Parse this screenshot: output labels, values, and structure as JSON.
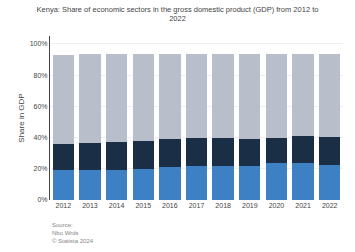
{
  "chart_data": {
    "type": "bar",
    "stacked": true,
    "title": "Kenya: Share of economic sectors in the gross domestic product (GDP) from 2012 to\n2022",
    "ylabel": "Share in GDP",
    "categories": [
      "2012",
      "2013",
      "2014",
      "2015",
      "2016",
      "2017",
      "2018",
      "2019",
      "2020",
      "2021",
      "2022"
    ],
    "series": [
      {
        "color": "#3d80c4",
        "values": [
          19.5,
          19.5,
          19.5,
          20.0,
          21.0,
          22.0,
          22.0,
          22.0,
          23.5,
          23.5,
          22.5
        ]
      },
      {
        "color": "#1a2e45",
        "values": [
          16.5,
          17.0,
          17.5,
          18.0,
          18.0,
          17.5,
          17.5,
          17.0,
          16.5,
          17.5,
          18.0
        ]
      },
      {
        "color": "#b8bfca",
        "values": [
          57.0,
          57.0,
          56.5,
          55.5,
          54.5,
          54.0,
          54.0,
          54.5,
          53.5,
          52.5,
          53.0
        ]
      }
    ],
    "ylim": [
      0,
      105
    ],
    "yticks": [
      {
        "value": 0,
        "label": "0%"
      },
      {
        "value": 20,
        "label": "20%"
      },
      {
        "value": 40,
        "label": "40%"
      },
      {
        "value": 60,
        "label": "60%"
      },
      {
        "value": 80,
        "label": "80%"
      },
      {
        "value": 100,
        "label": "100%"
      }
    ],
    "grid": true,
    "annotations": [
      "Source:\nNbo Wrds\n© Statista 2024"
    ]
  }
}
